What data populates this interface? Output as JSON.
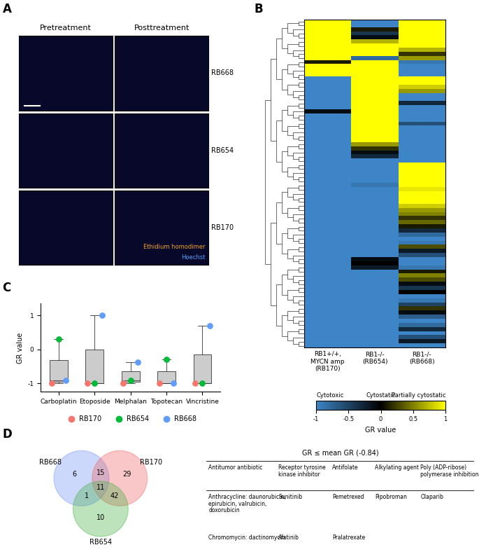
{
  "chart_data": [
    {
      "type": "image_grid",
      "panel": "A",
      "columns": [
        "Pretreatment",
        "Posttreatment"
      ],
      "rows": [
        "RB668",
        "RB654",
        "RB170"
      ],
      "stains": [
        {
          "name": "Ethidium homodimer",
          "color": "#f5a623"
        },
        {
          "name": "Hoechst",
          "color": "#4fa3ff"
        }
      ]
    },
    {
      "type": "heatmap",
      "panel": "B",
      "categories": [
        "RB1+/+,\nMYCN amp\n(RB170)",
        "RB1-/-\n(RB654)",
        "RB1-/-\n(RB668)"
      ],
      "tick_labels": "x",
      "colormap": [
        "#3d85c6",
        "#000000",
        "#ffff00"
      ],
      "colorbar": {
        "range": [
          -1,
          1
        ],
        "ticks": [
          -1,
          -0.5,
          0,
          0.5,
          1
        ],
        "title": "GR value",
        "level_labels": [
          {
            "value": -1,
            "label": "Cytotoxic"
          },
          {
            "value": 0,
            "label": "Cytostatic"
          },
          {
            "value": 1,
            "label": "Partially cytostatic"
          }
        ]
      },
      "cells": [
        [
          1,
          -1,
          1
        ],
        [
          1,
          -1,
          1
        ],
        [
          1,
          0.1,
          1
        ],
        [
          1,
          -0.4,
          1
        ],
        [
          1,
          -0.1,
          1
        ],
        [
          1,
          0.7,
          1
        ],
        [
          1,
          1,
          1
        ],
        [
          1,
          1,
          0.7
        ],
        [
          1,
          1,
          0.2
        ],
        [
          1,
          -0.8,
          0.6
        ],
        [
          0.1,
          1,
          -0.9
        ],
        [
          1,
          1,
          -1
        ],
        [
          1,
          1,
          -1
        ],
        [
          1,
          1,
          -1
        ],
        [
          -1,
          1,
          1
        ],
        [
          -1,
          1,
          1
        ],
        [
          -1,
          1,
          0.8
        ],
        [
          -1,
          1,
          0.6
        ],
        [
          -1,
          1,
          -1
        ],
        [
          -1,
          1,
          -1
        ],
        [
          -1,
          1,
          -0.3
        ],
        [
          -1,
          1,
          -1
        ],
        [
          -0.1,
          1,
          -1
        ],
        [
          -1,
          1,
          -1
        ],
        [
          -1,
          1,
          -1
        ],
        [
          -1,
          1,
          -0.6
        ],
        [
          -1,
          1,
          -1
        ],
        [
          -1,
          1,
          -1
        ],
        [
          -1,
          1,
          -1
        ],
        [
          -1,
          1,
          -1
        ],
        [
          -1,
          0.6,
          -1
        ],
        [
          -1,
          0.2,
          -1
        ],
        [
          -1,
          -0.1,
          -1
        ],
        [
          -1,
          -0.3,
          -1
        ],
        [
          -1,
          -1,
          -1
        ],
        [
          -1,
          -1,
          1
        ],
        [
          -1,
          -1,
          1
        ],
        [
          -1,
          -1,
          1
        ],
        [
          -1,
          -1,
          1
        ],
        [
          -1,
          -1,
          1
        ],
        [
          -1,
          -0.9,
          1
        ],
        [
          -1,
          -1,
          0.9
        ],
        [
          -1,
          -1,
          1
        ],
        [
          -1,
          -1,
          1
        ],
        [
          -1,
          -1,
          1
        ],
        [
          -1,
          -1,
          0.8
        ],
        [
          -1,
          -1,
          0.6
        ],
        [
          -1,
          -1,
          0.5
        ],
        [
          -1,
          -1,
          0.2
        ],
        [
          -1,
          -1,
          0.4
        ],
        [
          -1,
          -1,
          0.1
        ],
        [
          -1,
          -1,
          -0.3
        ],
        [
          -1,
          -1,
          -0.8
        ],
        [
          -1,
          -1,
          -1
        ],
        [
          -1,
          -1,
          -0.9
        ],
        [
          -1,
          -1,
          0.3
        ],
        [
          -1,
          -1,
          -0.2
        ],
        [
          -1,
          -1,
          -0.6
        ],
        [
          -1,
          -0.1,
          -1
        ],
        [
          -1,
          0,
          -1
        ],
        [
          -1,
          -0.2,
          -0.9
        ],
        [
          -1,
          -1,
          0.1
        ],
        [
          -1,
          -1,
          0.5
        ],
        [
          -1,
          -1,
          0.3
        ],
        [
          -1,
          -1,
          -0.1
        ],
        [
          -1,
          -1,
          -0.4
        ],
        [
          -1,
          -1,
          0
        ],
        [
          -1,
          -1,
          -1
        ],
        [
          -1,
          -1,
          -0.9
        ],
        [
          -1,
          -1,
          -0.5
        ],
        [
          -1,
          -1,
          0.2
        ],
        [
          -1,
          -1,
          -0.1
        ],
        [
          -1,
          -1,
          -0.7
        ],
        [
          -1,
          -1,
          -1
        ],
        [
          -1,
          -1,
          -0.8
        ],
        [
          -1,
          -1,
          -0.3
        ],
        [
          -1,
          -1,
          -1
        ],
        [
          -1,
          -1,
          -0.6
        ],
        [
          -1,
          -1,
          -0.2
        ],
        [
          -1,
          -1,
          -1
        ]
      ]
    },
    {
      "type": "box",
      "panel": "C",
      "categories": [
        "Carboplatin",
        "Etoposide",
        "Melphalan",
        "Topotecan",
        "Vincristine"
      ],
      "series": [
        {
          "name": "RB170",
          "color": "#F8766D",
          "values": [
            -1,
            -1,
            -1,
            -1,
            -1
          ]
        },
        {
          "name": "RB654",
          "color": "#00BA38",
          "values": [
            0.3,
            -1,
            -0.92,
            -0.3,
            -1
          ]
        },
        {
          "name": "RB668",
          "color": "#619CFF",
          "values": [
            -0.92,
            1,
            -0.38,
            -1,
            0.7
          ]
        }
      ],
      "y_label": "GR value",
      "ylim": [
        -1.25,
        1.35
      ],
      "yticks": [
        -1,
        0,
        1
      ],
      "grid": false,
      "legend": "bottom"
    },
    {
      "type": "venn",
      "panel": "D",
      "sets": [
        {
          "name": "RB668",
          "color": "#6c8ef5"
        },
        {
          "name": "RB170",
          "color": "#f06060"
        },
        {
          "name": "RB654",
          "color": "#40b040"
        }
      ],
      "regions": [
        {
          "sets": [
            "RB668"
          ],
          "value": 6
        },
        {
          "sets": [
            "RB668",
            "RB170"
          ],
          "value": 15
        },
        {
          "sets": [
            "RB170"
          ],
          "value": 29
        },
        {
          "sets": [
            "RB668",
            "RB170",
            "RB654"
          ],
          "value": 11
        },
        {
          "sets": [
            "RB668",
            "RB654"
          ],
          "value": 1
        },
        {
          "sets": [
            "RB170",
            "RB654"
          ],
          "value": 42
        },
        {
          "sets": [
            "RB654"
          ],
          "value": 10
        }
      ],
      "table": {
        "title": "GR ≤ mean GR (-0.84)",
        "columns": [
          "Antitumor antibiotic",
          "Receptor tyrosine kinase inhibitor",
          "Antifolate",
          "Alkylating agent",
          "Poly (ADP-ribose) polymerase inhibition"
        ],
        "rows": [
          [
            "Anthracycline: daunorubicin, epirubicin, valrubicin, doxorubicin",
            "Sunitinib",
            "Pemetrexed",
            "Pipobroman",
            "Olaparib"
          ],
          [
            "Chromomycin: dactinomycin",
            "Afatinib",
            "Pralatrexate",
            null,
            null
          ]
        ]
      }
    }
  ]
}
